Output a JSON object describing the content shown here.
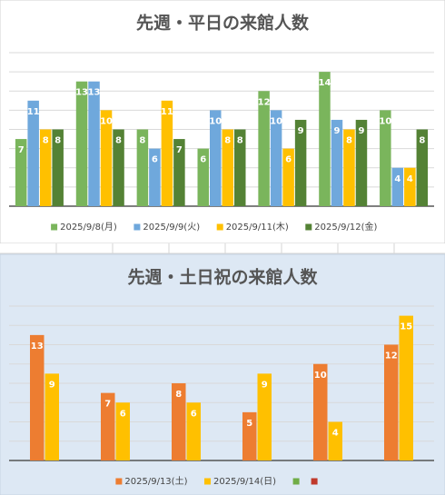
{
  "chart_data": [
    {
      "type": "bar",
      "title": "先週・平日の来館人数",
      "categories": [
        null,
        null,
        null,
        null,
        null,
        null,
        null
      ],
      "series": [
        {
          "name": "2025/9/8(月)",
          "color": "#7ab55c",
          "values": [
            7,
            13,
            8,
            6,
            12,
            14,
            10
          ]
        },
        {
          "name": "2025/9/9(火)",
          "color": "#6fa8dc",
          "values": [
            11,
            13,
            6,
            10,
            10,
            9,
            4
          ]
        },
        {
          "name": "2025/9/11(木)",
          "color": "#ffc000",
          "values": [
            8,
            10,
            11,
            8,
            6,
            8,
            4
          ]
        },
        {
          "name": "2025/9/12(金)",
          "color": "#548235",
          "values": [
            8,
            8,
            7,
            8,
            9,
            9,
            8
          ]
        }
      ],
      "ylim": [
        0,
        16
      ],
      "yticks": [
        0,
        2,
        4,
        6,
        8,
        10,
        12,
        14,
        16
      ],
      "grid": true,
      "legend": "bottom"
    },
    {
      "type": "bar",
      "title": "先週・土日祝の来館人数",
      "categories": [
        null,
        null,
        null,
        null,
        null,
        null
      ],
      "series": [
        {
          "name": "2025/9/13(土)",
          "color": "#ed7d31",
          "values": [
            13,
            7,
            8,
            5,
            10,
            12
          ]
        },
        {
          "name": "2025/9/14(日)",
          "color": "#ffc000",
          "values": [
            9,
            6,
            6,
            9,
            4,
            15
          ]
        },
        {
          "name": null,
          "color": "#70ad47",
          "values": [
            null,
            null,
            null,
            null,
            null,
            null
          ]
        },
        {
          "name": null,
          "color": "#c0392b",
          "values": [
            null,
            null,
            null,
            null,
            null,
            null
          ]
        }
      ],
      "ylim": [
        0,
        16
      ],
      "yticks": [
        0,
        2,
        4,
        6,
        8,
        10,
        12,
        14,
        16
      ],
      "grid": true,
      "legend": "bottom"
    }
  ]
}
